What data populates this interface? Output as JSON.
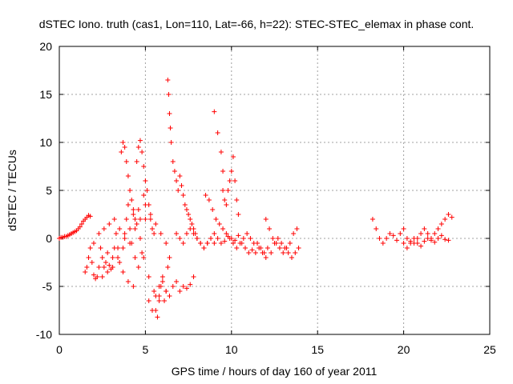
{
  "chart_data": {
    "type": "scatter",
    "title": "dSTEC Iono. truth (cas1, Lon=110, Lat=-66, h=22): STEC-STEC_elemax in phase cont.",
    "xlabel": "GPS time / hours of day 160 of year 2011",
    "ylabel": "dSTEC  / TECUs",
    "xlim": [
      0,
      25
    ],
    "ylim": [
      -10,
      20
    ],
    "xticks": [
      0,
      5,
      10,
      15,
      20,
      25
    ],
    "yticks": [
      -10,
      -5,
      0,
      5,
      10,
      15,
      20
    ],
    "xtick_labels": [
      "0",
      "5",
      "10",
      "15",
      "20",
      "25"
    ],
    "ytick_labels": [
      "-10",
      "-5",
      "0",
      "5",
      "10",
      "15",
      "20"
    ],
    "grid": true,
    "marker": "+",
    "color": "#ff0000",
    "series": [
      {
        "x": [
          0.0,
          0.1,
          0.2,
          0.3,
          0.4,
          0.5,
          0.6,
          0.7,
          0.8,
          0.9,
          1.0,
          1.1,
          1.2,
          1.3,
          1.4,
          1.5,
          1.6,
          1.7,
          1.8,
          1.5,
          1.6,
          1.7,
          1.8,
          1.9,
          2.0,
          2.1,
          2.2,
          2.3,
          2.4,
          2.5,
          2.6,
          2.7,
          2.8,
          2.9,
          3.0,
          3.1,
          3.2,
          3.3,
          3.4,
          3.5,
          3.6,
          3.7,
          3.8,
          3.9,
          4.0,
          4.1,
          4.2,
          4.3,
          4.4,
          4.5,
          4.6,
          4.7,
          4.8,
          4.9,
          5.0,
          5.1,
          5.2,
          5.3,
          5.4,
          5.5,
          3.7,
          3.8,
          3.9,
          4.0,
          4.1,
          4.2,
          4.3,
          4.4,
          4.5,
          4.6,
          4.7,
          4.8,
          4.9,
          5.0,
          2.0,
          2.3,
          2.6,
          2.9,
          3.2,
          3.5,
          3.8,
          4.1,
          4.4,
          4.7,
          5.0,
          5.3,
          5.6,
          5.9,
          6.2,
          2.5,
          2.8,
          3.1,
          3.4,
          3.7,
          4.0,
          4.3,
          4.6,
          4.9,
          5.2,
          5.5,
          5.8,
          5.6,
          5.7,
          5.8,
          5.9,
          6.0,
          6.1,
          6.2,
          6.3,
          6.4,
          5.2,
          5.4,
          5.6,
          5.8,
          6.0,
          6.2,
          6.4,
          6.6,
          6.8,
          7.0,
          7.2,
          7.4,
          7.6,
          7.8,
          6.3,
          6.35,
          6.4,
          6.45,
          6.5,
          6.6,
          6.7,
          6.8,
          6.9,
          7.0,
          7.1,
          7.2,
          7.3,
          7.4,
          7.5,
          7.6,
          7.7,
          7.8,
          7.9,
          8.0,
          8.2,
          8.4,
          8.6,
          8.8,
          9.0,
          6.8,
          7.0,
          7.2,
          7.4,
          7.6,
          7.8,
          8.0,
          8.2,
          8.4,
          8.6,
          8.8,
          9.0,
          9.2,
          9.4,
          9.6,
          9.8,
          10.0,
          10.2,
          10.4,
          10.6,
          10.8,
          11.0,
          11.2,
          11.4,
          11.6,
          11.8,
          12.0,
          8.5,
          8.7,
          8.9,
          9.1,
          9.3,
          9.5,
          9.7,
          9.9,
          10.1,
          10.3,
          10.5,
          10.7,
          10.9,
          11.1,
          11.3,
          11.5,
          11.7,
          11.9,
          12.1,
          12.3,
          12.5,
          12.7,
          12.9,
          13.1,
          13.3,
          13.5,
          13.7,
          13.9,
          9.0,
          9.2,
          9.4,
          9.5,
          9.5,
          9.6,
          9.7,
          9.8,
          9.9,
          10.0,
          10.1,
          10.2,
          10.3,
          10.4,
          12.0,
          12.2,
          12.4,
          12.6,
          12.8,
          13.0,
          13.2,
          13.4,
          13.6,
          13.8,
          18.2,
          18.4,
          18.6,
          18.8,
          19.0,
          19.2,
          19.4,
          19.6,
          19.8,
          20.0,
          20.2,
          20.4,
          20.6,
          20.8,
          21.0,
          21.2,
          21.4,
          21.6,
          21.8,
          22.0,
          22.2,
          22.4,
          22.6,
          22.8,
          20.0,
          20.2,
          20.4,
          20.6,
          20.8,
          21.0,
          21.2,
          21.4,
          21.6,
          21.8,
          22.0,
          22.2,
          22.4,
          22.6
        ],
        "y": [
          0.0,
          0.1,
          0.1,
          0.2,
          0.2,
          0.3,
          0.4,
          0.5,
          0.6,
          0.7,
          0.8,
          1.0,
          1.2,
          1.5,
          1.8,
          2.0,
          2.2,
          2.4,
          2.3,
          -3.5,
          -3.0,
          -2.0,
          -1.0,
          -2.5,
          -3.8,
          -4.2,
          -4.0,
          -3.0,
          -1.0,
          -2.0,
          -3.0,
          -2.5,
          -1.5,
          -2.8,
          -3.2,
          -2.0,
          -1.0,
          0.5,
          -1.0,
          -2.5,
          9.0,
          10.0,
          9.5,
          8.0,
          6.5,
          5.0,
          4.0,
          3.0,
          2.0,
          8.0,
          9.5,
          10.2,
          9.0,
          7.5,
          6.0,
          5.0,
          3.5,
          2.0,
          1.0,
          0.5,
          -1.0,
          0.5,
          2.0,
          3.5,
          1.0,
          -0.5,
          2.5,
          -2.0,
          1.5,
          3.0,
          0.0,
          -1.5,
          4.5,
          2.0,
          -0.5,
          0.5,
          1.0,
          1.5,
          2.0,
          1.0,
          0.0,
          -0.5,
          1.0,
          2.0,
          3.5,
          2.5,
          1.5,
          0.5,
          -0.5,
          -4.0,
          -3.5,
          -3.0,
          -2.0,
          -3.5,
          -4.5,
          -5.0,
          -3.0,
          -2.0,
          -4.0,
          -5.5,
          -6.5,
          -7.5,
          -8.2,
          -6.0,
          -5.0,
          -4.5,
          -6.5,
          -5.5,
          -3.0,
          -2.0,
          -6.5,
          -7.5,
          -6.0,
          -5.0,
          -4.0,
          -5.5,
          -6.0,
          -5.0,
          -4.5,
          -5.5,
          -5.0,
          -5.2,
          -4.8,
          -4.0,
          16.5,
          15.0,
          13.0,
          11.5,
          10.0,
          8.0,
          7.0,
          6.0,
          5.0,
          6.5,
          5.5,
          4.5,
          3.5,
          3.0,
          2.5,
          2.0,
          1.5,
          1.0,
          0.5,
          0.0,
          -0.5,
          -1.0,
          -0.5,
          0.0,
          -0.5,
          0.5,
          0.0,
          -0.5,
          0.5,
          1.0,
          0.5,
          0.0,
          -0.5,
          -1.0,
          -0.5,
          0.0,
          0.5,
          0.0,
          -0.5,
          -0.3,
          0.2,
          0.0,
          -0.2,
          0.3,
          -0.5,
          -1.0,
          -1.5,
          -1.2,
          -1.5,
          -1.0,
          -1.5,
          -2.0,
          4.5,
          4.0,
          3.0,
          2.0,
          1.5,
          1.0,
          0.5,
          0.0,
          -0.5,
          -1.0,
          -0.5,
          0.0,
          0.5,
          0.0,
          -0.5,
          -0.5,
          -1.0,
          -1.5,
          -1.0,
          -1.5,
          -0.5,
          0.0,
          -0.5,
          -1.0,
          -1.5,
          -2.0,
          -1.5,
          -1.0,
          13.2,
          11.0,
          9.0,
          7.0,
          5.0,
          4.0,
          3.5,
          5.0,
          6.0,
          7.0,
          8.5,
          6.0,
          4.0,
          2.5,
          2.0,
          1.0,
          0.0,
          -0.5,
          -1.0,
          -1.5,
          -1.0,
          -0.5,
          0.5,
          1.0,
          2.0,
          1.0,
          0.0,
          -0.5,
          0.0,
          0.5,
          0.3,
          -0.2,
          0.5,
          1.0,
          0.0,
          -0.3,
          -0.5,
          0.0,
          0.5,
          1.0,
          0.5,
          0.0,
          0.5,
          1.0,
          1.5,
          2.0,
          2.5,
          2.2,
          -0.5,
          -1.0,
          -0.5,
          0.0,
          -0.5,
          -0.8,
          -0.3,
          0.0,
          -0.2,
          -0.4,
          0.0,
          0.3,
          -0.1,
          -0.2
        ]
      }
    ]
  }
}
